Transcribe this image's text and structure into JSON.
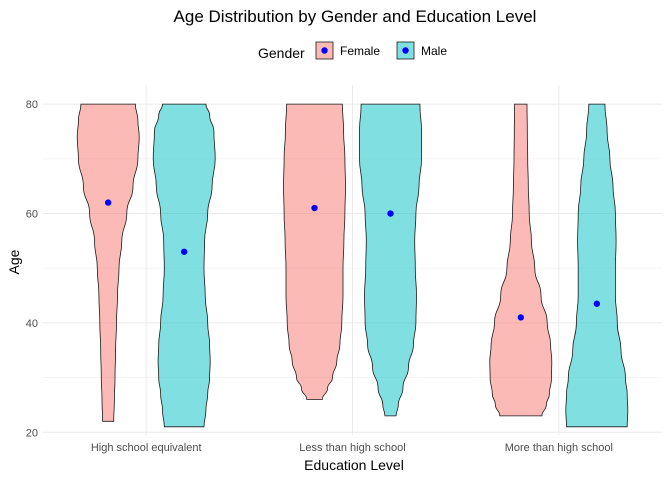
{
  "chart_data": {
    "type": "violin",
    "title": "Age Distribution by Gender and Education Level",
    "xlabel": "Education Level",
    "ylabel": "Age",
    "categories": [
      "High school equivalent",
      "Less than high school",
      "More than high school"
    ],
    "ylim": [
      19.5,
      83.5
    ],
    "yticks": [
      20,
      40,
      60,
      80
    ],
    "grid": true,
    "legend": {
      "title": "Gender",
      "position": "top",
      "entries": [
        "Female",
        "Male"
      ]
    },
    "colors": {
      "Female": "#f8766d",
      "Male": "#00bfc4",
      "point": "#0000ff"
    },
    "series": [
      {
        "name": "Female",
        "violins": [
          {
            "category": "High school equivalent",
            "min": 22,
            "max": 80,
            "mean": 62,
            "profile": [
              [
                22,
                0.18
              ],
              [
                26,
                0.2
              ],
              [
                30,
                0.22
              ],
              [
                35,
                0.24
              ],
              [
                40,
                0.27
              ],
              [
                45,
                0.3
              ],
              [
                50,
                0.35
              ],
              [
                55,
                0.44
              ],
              [
                60,
                0.6
              ],
              [
                65,
                0.8
              ],
              [
                70,
                0.96
              ],
              [
                74,
                1.0
              ],
              [
                77,
                0.96
              ],
              [
                80,
                0.88
              ]
            ]
          },
          {
            "category": "Less than high school",
            "min": 26,
            "max": 80,
            "mean": 61,
            "profile": [
              [
                26,
                0.25
              ],
              [
                28,
                0.42
              ],
              [
                30,
                0.58
              ],
              [
                33,
                0.72
              ],
              [
                36,
                0.82
              ],
              [
                40,
                0.88
              ],
              [
                45,
                0.92
              ],
              [
                50,
                0.92
              ],
              [
                55,
                0.95
              ],
              [
                60,
                0.98
              ],
              [
                65,
                1.0
              ],
              [
                70,
                0.98
              ],
              [
                75,
                0.94
              ],
              [
                80,
                0.9
              ]
            ]
          },
          {
            "category": "More than high school",
            "min": 23,
            "max": 80,
            "mean": 41,
            "profile": [
              [
                23,
                0.68
              ],
              [
                25,
                0.82
              ],
              [
                27,
                0.92
              ],
              [
                30,
                0.99
              ],
              [
                33,
                1.0
              ],
              [
                36,
                0.96
              ],
              [
                40,
                0.85
              ],
              [
                45,
                0.65
              ],
              [
                50,
                0.45
              ],
              [
                55,
                0.34
              ],
              [
                60,
                0.27
              ],
              [
                65,
                0.24
              ],
              [
                70,
                0.22
              ],
              [
                75,
                0.21
              ],
              [
                80,
                0.2
              ]
            ]
          }
        ]
      },
      {
        "name": "Male",
        "violins": [
          {
            "category": "High school equivalent",
            "min": 21,
            "max": 80,
            "mean": 53,
            "profile": [
              [
                21,
                0.64
              ],
              [
                24,
                0.7
              ],
              [
                27,
                0.76
              ],
              [
                30,
                0.82
              ],
              [
                33,
                0.84
              ],
              [
                36,
                0.82
              ],
              [
                40,
                0.76
              ],
              [
                45,
                0.68
              ],
              [
                50,
                0.64
              ],
              [
                55,
                0.66
              ],
              [
                60,
                0.76
              ],
              [
                65,
                0.9
              ],
              [
                70,
                1.0
              ],
              [
                75,
                0.96
              ],
              [
                78,
                0.82
              ],
              [
                80,
                0.7
              ]
            ]
          },
          {
            "category": "Less than high school",
            "min": 23,
            "max": 80,
            "mean": 60,
            "profile": [
              [
                23,
                0.18
              ],
              [
                25,
                0.25
              ],
              [
                28,
                0.4
              ],
              [
                32,
                0.58
              ],
              [
                36,
                0.74
              ],
              [
                40,
                0.82
              ],
              [
                45,
                0.84
              ],
              [
                50,
                0.8
              ],
              [
                55,
                0.78
              ],
              [
                60,
                0.82
              ],
              [
                65,
                0.92
              ],
              [
                70,
                1.0
              ],
              [
                75,
                1.0
              ],
              [
                80,
                0.95
              ]
            ]
          },
          {
            "category": "More than high school",
            "min": 21,
            "max": 80,
            "mean": 43.5,
            "profile": [
              [
                21,
                0.98
              ],
              [
                24,
                1.0
              ],
              [
                27,
                0.98
              ],
              [
                30,
                0.92
              ],
              [
                35,
                0.78
              ],
              [
                40,
                0.66
              ],
              [
                45,
                0.6
              ],
              [
                50,
                0.6
              ],
              [
                55,
                0.62
              ],
              [
                60,
                0.6
              ],
              [
                65,
                0.52
              ],
              [
                70,
                0.42
              ],
              [
                75,
                0.33
              ],
              [
                80,
                0.26
              ]
            ]
          }
        ]
      }
    ]
  }
}
